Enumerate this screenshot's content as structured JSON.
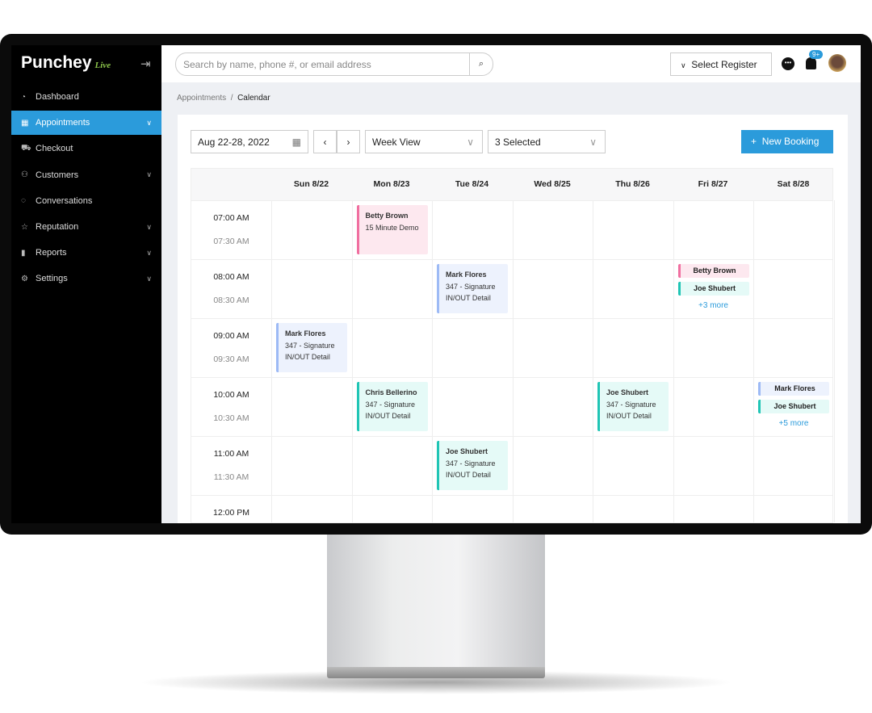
{
  "brand": {
    "name": "Punchey",
    "tag": "Live"
  },
  "sidebar": {
    "items": [
      {
        "label": "Dashboard",
        "icon": "gauge-icon"
      },
      {
        "label": "Appointments",
        "icon": "calendar-icon",
        "active": true,
        "chevron": true
      },
      {
        "label": "Checkout",
        "icon": "cart-icon"
      },
      {
        "label": "Customers",
        "icon": "users-icon",
        "chevron": true
      },
      {
        "label": "Conversations",
        "icon": "chat-icon"
      },
      {
        "label": "Reputation",
        "icon": "star-icon",
        "chevron": true
      },
      {
        "label": "Reports",
        "icon": "bar-chart-icon",
        "chevron": true
      },
      {
        "label": "Settings",
        "icon": "gear-icon",
        "chevron": true
      }
    ]
  },
  "topbar": {
    "search_placeholder": "Search by name, phone #, or email address",
    "register": "Select Register",
    "notifications": "9+"
  },
  "breadcrumb": {
    "parent": "Appointments",
    "current": "Calendar"
  },
  "toolbar": {
    "date_range": "Aug 22-28, 2022",
    "view": "Week View",
    "selected": "3 Selected",
    "new_booking": "New Booking"
  },
  "calendar": {
    "days": [
      "Sun 8/22",
      "Mon 8/23",
      "Tue 8/24",
      "Wed 8/25",
      "Thu 8/26",
      "Fri 8/27",
      "Sat 8/28"
    ],
    "times": [
      [
        "07:00 AM",
        "07:30 AM"
      ],
      [
        "08:00 AM",
        "08:30 AM"
      ],
      [
        "09:00 AM",
        "09:30 AM"
      ],
      [
        "10:00 AM",
        "10:30 AM"
      ],
      [
        "11:00 AM",
        "11:30 AM"
      ],
      [
        "12:00 PM",
        ""
      ]
    ],
    "events": [
      {
        "day": 1,
        "row": 0,
        "name": "Betty Brown",
        "line1": "15 Minute Demo",
        "line2": "",
        "color": "pink"
      },
      {
        "day": 2,
        "row": 1,
        "name": "Mark Flores",
        "line1": "347 - Signature",
        "line2": "IN/OUT Detail",
        "color": "blue"
      },
      {
        "day": 0,
        "row": 2,
        "name": "Mark Flores",
        "line1": "347 - Signature",
        "line2": "IN/OUT Detail",
        "color": "blue"
      },
      {
        "day": 1,
        "row": 3,
        "name": "Chris Bellerino",
        "line1": "347 - Signature",
        "line2": "IN/OUT Detail",
        "color": "teal"
      },
      {
        "day": 4,
        "row": 3,
        "name": "Joe Shubert",
        "line1": "347 - Signature",
        "line2": "IN/OUT Detail",
        "color": "teal"
      },
      {
        "day": 2,
        "row": 4,
        "name": "Joe Shubert",
        "line1": "347 - Signature",
        "line2": "IN/OUT Detail",
        "color": "teal"
      }
    ],
    "stacks": [
      {
        "day": 5,
        "row": 1,
        "pills": [
          {
            "name": "Betty Brown",
            "color": "pink"
          },
          {
            "name": "Joe Shubert",
            "color": "teal"
          }
        ],
        "more": "+3 more"
      },
      {
        "day": 6,
        "row": 3,
        "pills": [
          {
            "name": "Mark Flores",
            "color": "blue"
          },
          {
            "name": "Joe Shubert",
            "color": "teal"
          }
        ],
        "more": "+5 more"
      }
    ]
  },
  "colors": {
    "accent": "#2b9bdb",
    "sidebar": "#000000",
    "pink": "#f06fa0",
    "teal": "#20c5b5",
    "blue": "#9dbaf5"
  }
}
